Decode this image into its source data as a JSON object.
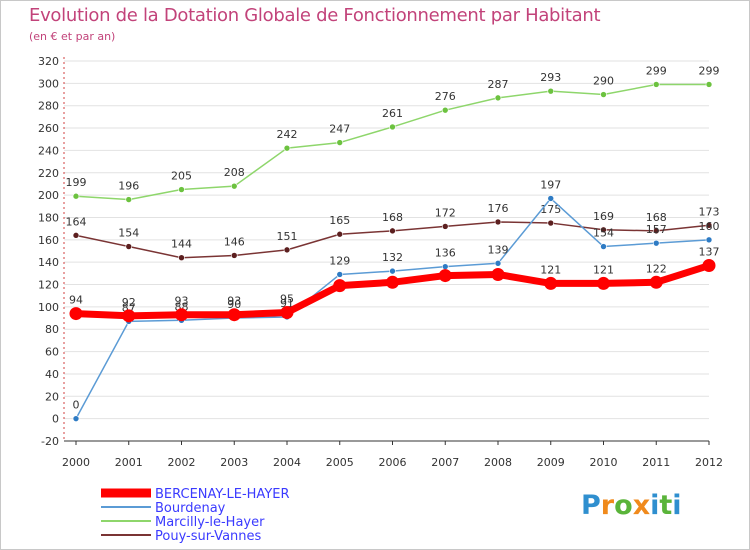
{
  "title": "Evolution de la Dotation Globale de Fonctionnement par Habitant",
  "subtitle": "(en € et par an)",
  "logo": {
    "letters": [
      "P",
      "r",
      "o",
      "x",
      "i",
      "t",
      "i"
    ],
    "colors": [
      "#2f8fcf",
      "#f08a1c",
      "#5ab43a",
      "#f08a1c",
      "#2f8fcf",
      "#5ab43a",
      "#2f8fcf"
    ]
  },
  "chart_data": {
    "type": "line",
    "x": [
      2000,
      2001,
      2002,
      2003,
      2004,
      2005,
      2006,
      2007,
      2008,
      2009,
      2010,
      2011,
      2012
    ],
    "ylim": [
      -20,
      320
    ],
    "yticks": [
      -20,
      0,
      20,
      40,
      60,
      80,
      100,
      120,
      140,
      160,
      180,
      200,
      220,
      240,
      260,
      280,
      300,
      320
    ],
    "grid": "horizontal",
    "series": [
      {
        "name": "Marcilly-le-Hayer",
        "color": "#8ed66b",
        "marker": "#6cc23f",
        "values": [
          199,
          196,
          205,
          208,
          242,
          247,
          261,
          276,
          287,
          293,
          290,
          299,
          299
        ],
        "labels": [
          "199",
          "196",
          "205",
          "208",
          "242",
          "247",
          "261",
          "276",
          "287",
          "293",
          "290",
          "299",
          "299"
        ]
      },
      {
        "name": "Pouy-sur-Vannes",
        "color": "#7a3434",
        "marker": "#5c1f1f",
        "values": [
          164,
          154,
          144,
          146,
          151,
          165,
          168,
          172,
          176,
          175,
          169,
          168,
          173
        ],
        "labels": [
          "164",
          "154",
          "144",
          "146",
          "151",
          "165",
          "168",
          "172",
          "176",
          "175",
          "169",
          "168",
          "173"
        ]
      },
      {
        "name": "Bourdenay",
        "color": "#5b9bd5",
        "marker": "#2e7bc4",
        "values": [
          0,
          87,
          88,
          90,
          91,
          129,
          132,
          136,
          139,
          197,
          154,
          157,
          160
        ],
        "labels": [
          "0",
          "87",
          "88",
          "90",
          "91",
          "129",
          "132",
          "136",
          "139",
          "197",
          "154",
          "157",
          "160"
        ]
      },
      {
        "name": "BERCENAY-LE-HAYER",
        "color": "#ff0000",
        "marker": "#ff0000",
        "values": [
          94,
          92,
          93,
          93,
          95,
          119,
          122,
          128,
          129,
          121,
          121,
          122,
          137
        ],
        "labels": [
          "94",
          "92",
          "93",
          "93",
          "95",
          "",
          "",
          "",
          "",
          "121",
          "121",
          "122",
          "137"
        ]
      }
    ],
    "legend": [
      "BERCENAY-LE-HAYER",
      "Bourdenay",
      "Marcilly-le-Hayer",
      "Pouy-sur-Vannes"
    ]
  }
}
